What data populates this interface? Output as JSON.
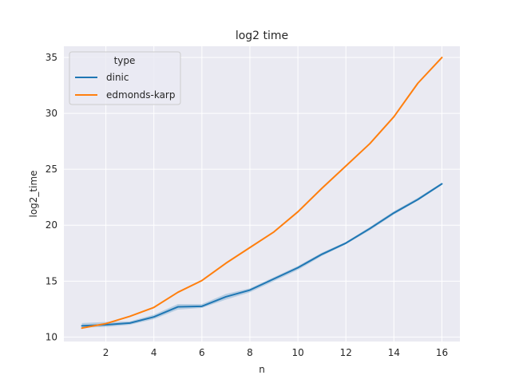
{
  "chart_data": {
    "type": "line",
    "title": "log2 time",
    "xlabel": "n",
    "ylabel": "log2_time",
    "xlim": [
      0.25,
      16.75
    ],
    "ylim": [
      9.6,
      36.0
    ],
    "xticks": [
      2,
      4,
      6,
      8,
      10,
      12,
      14,
      16
    ],
    "yticks": [
      10,
      15,
      20,
      25,
      30,
      35
    ],
    "grid": true,
    "legend": {
      "title": "type",
      "placement": "top-left"
    },
    "x": [
      1,
      2,
      3,
      4,
      5,
      6,
      7,
      8,
      9,
      10,
      11,
      12,
      13,
      14,
      15,
      16
    ],
    "series": [
      {
        "name": "dinic",
        "color": "#1f77b4",
        "values": [
          11.0,
          11.1,
          11.25,
          11.8,
          12.7,
          12.75,
          13.6,
          14.2,
          15.2,
          16.2,
          17.4,
          18.4,
          19.7,
          21.1,
          22.3,
          23.7
        ],
        "ci_low": [
          10.85,
          10.9,
          11.1,
          11.6,
          12.45,
          12.6,
          13.35,
          14.0,
          15.0,
          16.0,
          17.25,
          18.3,
          19.55,
          20.95,
          22.2,
          23.6
        ],
        "ci_high": [
          11.25,
          11.35,
          11.4,
          12.0,
          12.95,
          12.95,
          13.85,
          14.35,
          15.35,
          16.35,
          17.55,
          18.5,
          19.85,
          21.25,
          22.45,
          23.8
        ]
      },
      {
        "name": "edmonds-karp",
        "color": "#ff7f0e",
        "values": [
          10.8,
          11.2,
          11.85,
          12.65,
          14.0,
          15.05,
          16.6,
          18.0,
          19.4,
          21.2,
          23.3,
          25.3,
          27.3,
          29.7,
          32.7,
          35.0
        ],
        "ci_low": [
          10.8,
          11.2,
          11.85,
          12.65,
          14.0,
          15.05,
          16.6,
          18.0,
          19.4,
          21.2,
          23.3,
          25.3,
          27.3,
          29.7,
          32.7,
          35.0
        ],
        "ci_high": [
          10.8,
          11.2,
          11.85,
          12.65,
          14.0,
          15.05,
          16.6,
          18.0,
          19.4,
          21.2,
          23.3,
          25.3,
          27.3,
          29.7,
          32.7,
          35.0
        ]
      }
    ]
  },
  "colors": {
    "plot_background": "#eaeaf2",
    "grid": "#ffffff",
    "text": "#262626"
  }
}
